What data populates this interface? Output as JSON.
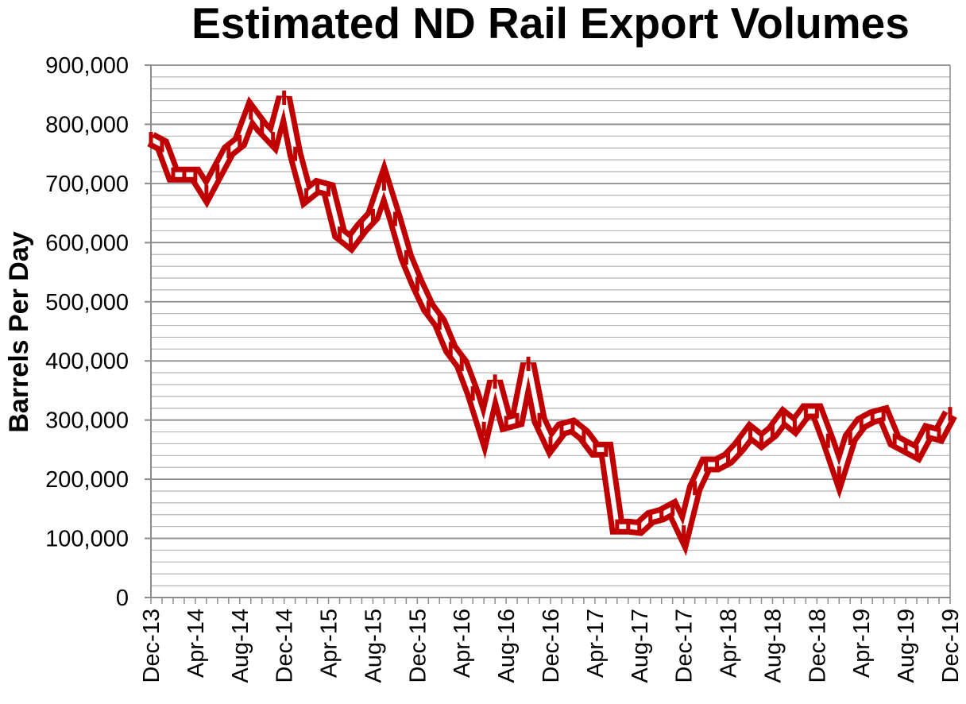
{
  "chart_data": {
    "type": "line",
    "title": "Estimated ND Rail Export Volumes",
    "xlabel": "",
    "ylabel": "Barrels Per Day",
    "ylim": [
      0,
      900000
    ],
    "y_ticks": [
      0,
      100000,
      200000,
      300000,
      400000,
      500000,
      600000,
      700000,
      800000,
      900000
    ],
    "y_tick_labels": [
      "0",
      "100,000",
      "200,000",
      "300,000",
      "400,000",
      "500,000",
      "600,000",
      "700,000",
      "800,000",
      "900,000"
    ],
    "x_tick_labels": [
      "Dec-13",
      "Apr-14",
      "Aug-14",
      "Dec-14",
      "Apr-15",
      "Aug-15",
      "Dec-15",
      "Apr-16",
      "Aug-16",
      "Dec-16",
      "Apr-17",
      "Aug-17",
      "Dec-17",
      "Apr-18",
      "Aug-18",
      "Dec-18",
      "Apr-19",
      "Aug-19",
      "Dec-19"
    ],
    "x": [
      "Dec-13",
      "Jan-14",
      "Feb-14",
      "Mar-14",
      "Apr-14",
      "May-14",
      "Jun-14",
      "Jul-14",
      "Aug-14",
      "Sep-14",
      "Oct-14",
      "Nov-14",
      "Dec-14",
      "Jan-15",
      "Feb-15",
      "Mar-15",
      "Apr-15",
      "May-15",
      "Jun-15",
      "Jul-15",
      "Aug-15",
      "Sep-15",
      "Oct-15",
      "Nov-15",
      "Dec-15",
      "Jan-16",
      "Feb-16",
      "Mar-16",
      "Apr-16",
      "May-16",
      "Jun-16",
      "Jul-16",
      "Aug-16",
      "Sep-16",
      "Oct-16",
      "Nov-16",
      "Dec-16",
      "Jan-17",
      "Feb-17",
      "Mar-17",
      "Apr-17",
      "May-17",
      "Jun-17",
      "Jul-17",
      "Aug-17",
      "Sep-17",
      "Oct-17",
      "Nov-17",
      "Dec-17",
      "Jan-18",
      "Feb-18",
      "Mar-18",
      "Apr-18",
      "May-18",
      "Jun-18",
      "Jul-18",
      "Aug-18",
      "Sep-18",
      "Oct-18",
      "Nov-18",
      "Dec-18",
      "Jan-19",
      "Feb-19",
      "Mar-19",
      "Apr-19",
      "May-19",
      "Jun-19",
      "Jul-19",
      "Aug-19",
      "Sep-19",
      "Oct-19",
      "Nov-19",
      "Dec-19"
    ],
    "grid": true,
    "legend": "none",
    "series": [
      {
        "color": "#c00000",
        "values": [
          775000,
          765000,
          715000,
          715000,
          715000,
          685000,
          720000,
          755000,
          770000,
          820000,
          795000,
          775000,
          845000,
          750000,
          680000,
          695000,
          690000,
          615000,
          600000,
          625000,
          645000,
          700000,
          640000,
          575000,
          530000,
          490000,
          465000,
          420000,
          395000,
          345000,
          285000,
          365000,
          295000,
          300000,
          395000,
          300000,
          260000,
          285000,
          290000,
          275000,
          250000,
          250000,
          120000,
          120000,
          118000,
          135000,
          140000,
          150000,
          110000,
          185000,
          225000,
          225000,
          235000,
          255000,
          280000,
          265000,
          280000,
          305000,
          290000,
          315000,
          315000,
          265000,
          210000,
          270000,
          295000,
          305000,
          310000,
          265000,
          255000,
          245000,
          280000,
          275000,
          310000
        ]
      }
    ]
  }
}
